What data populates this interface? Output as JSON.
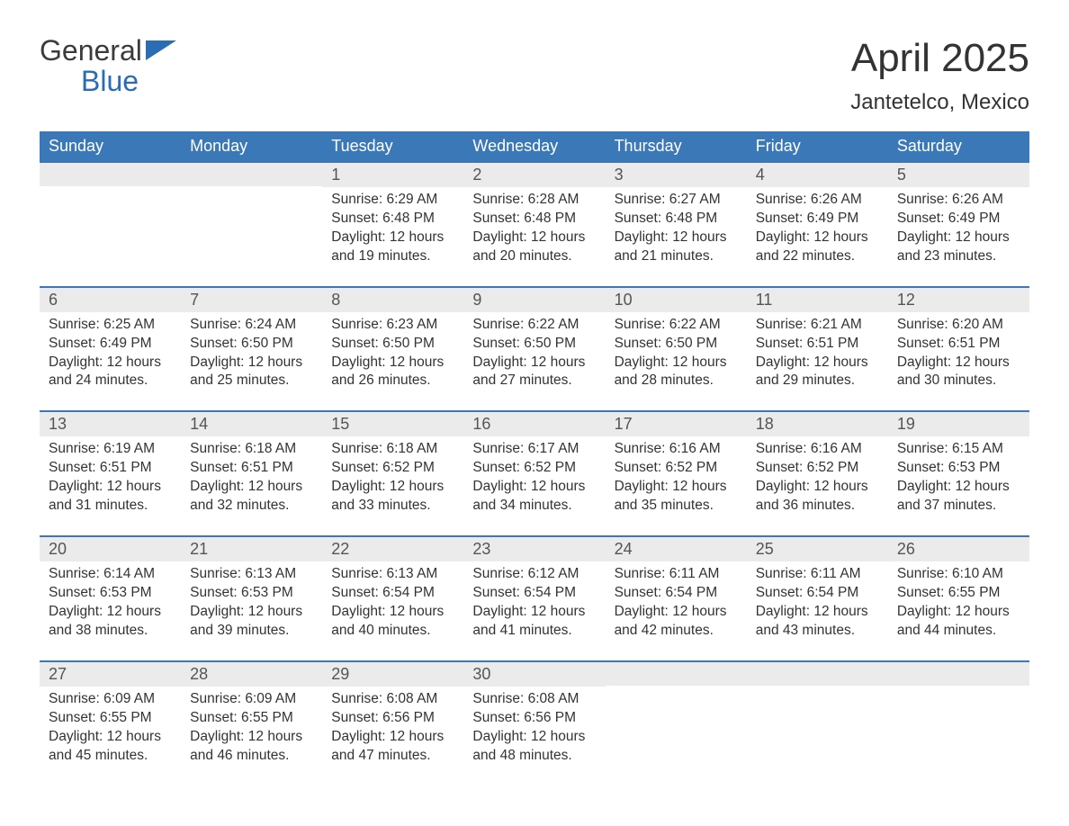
{
  "logo": {
    "line1": "General",
    "line2": "Blue",
    "flag_color": "#2a6db5",
    "text_color_gray": "#3b3b3b",
    "text_color_blue": "#2a6db5"
  },
  "title": "April 2025",
  "subtitle": "Jantetelco, Mexico",
  "colors": {
    "header_bg": "#3b78b8",
    "header_text": "#ffffff",
    "daynum_bg": "#ebebeb",
    "daynum_text": "#555555",
    "body_text": "#333333",
    "week_border": "#3b78b8",
    "page_bg": "#ffffff"
  },
  "typography": {
    "title_fontsize": 44,
    "subtitle_fontsize": 24,
    "dayheader_fontsize": 18,
    "daynum_fontsize": 18,
    "body_fontsize": 15.5,
    "logo_fontsize": 32,
    "font_family": "Arial"
  },
  "day_headers": [
    "Sunday",
    "Monday",
    "Tuesday",
    "Wednesday",
    "Thursday",
    "Friday",
    "Saturday"
  ],
  "labels": {
    "sunrise": "Sunrise: ",
    "sunset": "Sunset: ",
    "daylight_prefix": "Daylight: ",
    "daylight_mid": " hours and ",
    "daylight_suffix": " minutes."
  },
  "weeks": [
    [
      {
        "blank": true
      },
      {
        "blank": true
      },
      {
        "day": "1",
        "sunrise": "6:29 AM",
        "sunset": "6:48 PM",
        "dl_h": "12",
        "dl_m": "19"
      },
      {
        "day": "2",
        "sunrise": "6:28 AM",
        "sunset": "6:48 PM",
        "dl_h": "12",
        "dl_m": "20"
      },
      {
        "day": "3",
        "sunrise": "6:27 AM",
        "sunset": "6:48 PM",
        "dl_h": "12",
        "dl_m": "21"
      },
      {
        "day": "4",
        "sunrise": "6:26 AM",
        "sunset": "6:49 PM",
        "dl_h": "12",
        "dl_m": "22"
      },
      {
        "day": "5",
        "sunrise": "6:26 AM",
        "sunset": "6:49 PM",
        "dl_h": "12",
        "dl_m": "23"
      }
    ],
    [
      {
        "day": "6",
        "sunrise": "6:25 AM",
        "sunset": "6:49 PM",
        "dl_h": "12",
        "dl_m": "24"
      },
      {
        "day": "7",
        "sunrise": "6:24 AM",
        "sunset": "6:50 PM",
        "dl_h": "12",
        "dl_m": "25"
      },
      {
        "day": "8",
        "sunrise": "6:23 AM",
        "sunset": "6:50 PM",
        "dl_h": "12",
        "dl_m": "26"
      },
      {
        "day": "9",
        "sunrise": "6:22 AM",
        "sunset": "6:50 PM",
        "dl_h": "12",
        "dl_m": "27"
      },
      {
        "day": "10",
        "sunrise": "6:22 AM",
        "sunset": "6:50 PM",
        "dl_h": "12",
        "dl_m": "28"
      },
      {
        "day": "11",
        "sunrise": "6:21 AM",
        "sunset": "6:51 PM",
        "dl_h": "12",
        "dl_m": "29"
      },
      {
        "day": "12",
        "sunrise": "6:20 AM",
        "sunset": "6:51 PM",
        "dl_h": "12",
        "dl_m": "30"
      }
    ],
    [
      {
        "day": "13",
        "sunrise": "6:19 AM",
        "sunset": "6:51 PM",
        "dl_h": "12",
        "dl_m": "31"
      },
      {
        "day": "14",
        "sunrise": "6:18 AM",
        "sunset": "6:51 PM",
        "dl_h": "12",
        "dl_m": "32"
      },
      {
        "day": "15",
        "sunrise": "6:18 AM",
        "sunset": "6:52 PM",
        "dl_h": "12",
        "dl_m": "33"
      },
      {
        "day": "16",
        "sunrise": "6:17 AM",
        "sunset": "6:52 PM",
        "dl_h": "12",
        "dl_m": "34"
      },
      {
        "day": "17",
        "sunrise": "6:16 AM",
        "sunset": "6:52 PM",
        "dl_h": "12",
        "dl_m": "35"
      },
      {
        "day": "18",
        "sunrise": "6:16 AM",
        "sunset": "6:52 PM",
        "dl_h": "12",
        "dl_m": "36"
      },
      {
        "day": "19",
        "sunrise": "6:15 AM",
        "sunset": "6:53 PM",
        "dl_h": "12",
        "dl_m": "37"
      }
    ],
    [
      {
        "day": "20",
        "sunrise": "6:14 AM",
        "sunset": "6:53 PM",
        "dl_h": "12",
        "dl_m": "38"
      },
      {
        "day": "21",
        "sunrise": "6:13 AM",
        "sunset": "6:53 PM",
        "dl_h": "12",
        "dl_m": "39"
      },
      {
        "day": "22",
        "sunrise": "6:13 AM",
        "sunset": "6:54 PM",
        "dl_h": "12",
        "dl_m": "40"
      },
      {
        "day": "23",
        "sunrise": "6:12 AM",
        "sunset": "6:54 PM",
        "dl_h": "12",
        "dl_m": "41"
      },
      {
        "day": "24",
        "sunrise": "6:11 AM",
        "sunset": "6:54 PM",
        "dl_h": "12",
        "dl_m": "42"
      },
      {
        "day": "25",
        "sunrise": "6:11 AM",
        "sunset": "6:54 PM",
        "dl_h": "12",
        "dl_m": "43"
      },
      {
        "day": "26",
        "sunrise": "6:10 AM",
        "sunset": "6:55 PM",
        "dl_h": "12",
        "dl_m": "44"
      }
    ],
    [
      {
        "day": "27",
        "sunrise": "6:09 AM",
        "sunset": "6:55 PM",
        "dl_h": "12",
        "dl_m": "45"
      },
      {
        "day": "28",
        "sunrise": "6:09 AM",
        "sunset": "6:55 PM",
        "dl_h": "12",
        "dl_m": "46"
      },
      {
        "day": "29",
        "sunrise": "6:08 AM",
        "sunset": "6:56 PM",
        "dl_h": "12",
        "dl_m": "47"
      },
      {
        "day": "30",
        "sunrise": "6:08 AM",
        "sunset": "6:56 PM",
        "dl_h": "12",
        "dl_m": "48"
      },
      {
        "blank": true
      },
      {
        "blank": true
      },
      {
        "blank": true
      }
    ]
  ]
}
